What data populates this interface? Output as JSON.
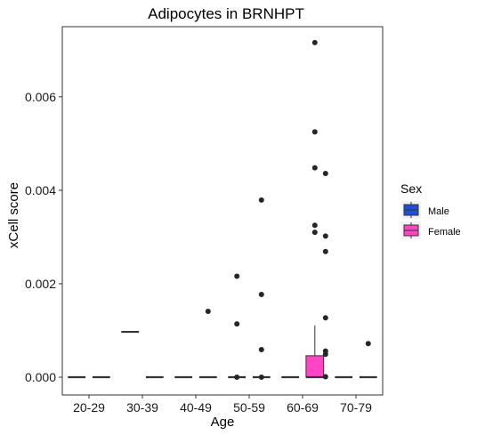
{
  "chart_data": {
    "type": "box",
    "title": "Adipocytes in BRNHPT",
    "xlabel": "Age",
    "ylabel": "xCell score",
    "categories": [
      "20-29",
      "30-39",
      "40-49",
      "50-59",
      "60-69",
      "70-79"
    ],
    "ylim": [
      -0.00038,
      0.0075
    ],
    "yticks": [
      0.0,
      0.002,
      0.004,
      0.006
    ],
    "ytick_labels": [
      "0.000",
      "0.002",
      "0.004",
      "0.006"
    ],
    "grid": false,
    "legend": {
      "title": "Sex",
      "position": "right",
      "entries": [
        {
          "label": "Male",
          "color": "#1f4fd6"
        },
        {
          "label": "Female",
          "color": "#ff44c4"
        }
      ]
    },
    "series": [
      {
        "name": "Male",
        "color": "#1f4fd6",
        "boxes": [
          {
            "category": "20-29",
            "q1": 0,
            "median": 0,
            "q3": 0,
            "whisker_low": 0,
            "whisker_high": 0,
            "outliers": []
          },
          {
            "category": "30-39",
            "q1": 0.00097,
            "median": 0.00097,
            "q3": 0.00097,
            "whisker_low": 0.00097,
            "whisker_high": 0.00097,
            "outliers": []
          },
          {
            "category": "40-49",
            "q1": 0,
            "median": 0,
            "q3": 0,
            "whisker_low": 0,
            "whisker_high": 0,
            "outliers": []
          },
          {
            "category": "50-59",
            "q1": 0,
            "median": 0,
            "q3": 0,
            "whisker_low": 0,
            "whisker_high": 0,
            "outliers": [
              0.00216,
              0.00114,
              0.0
            ]
          },
          {
            "category": "60-69",
            "q1": 0,
            "median": 0,
            "q3": 0,
            "whisker_low": 0,
            "whisker_high": 0,
            "outliers": []
          },
          {
            "category": "70-79",
            "q1": 0,
            "median": 0,
            "q3": 0,
            "whisker_low": 0,
            "whisker_high": 0,
            "outliers": []
          }
        ]
      },
      {
        "name": "Female",
        "color": "#ff44c4",
        "boxes": [
          {
            "category": "20-29",
            "q1": 0,
            "median": 0,
            "q3": 0,
            "whisker_low": 0,
            "whisker_high": 0,
            "outliers": []
          },
          {
            "category": "30-39",
            "q1": 0,
            "median": 0,
            "q3": 0,
            "whisker_low": 0,
            "whisker_high": 0,
            "outliers": []
          },
          {
            "category": "40-49",
            "q1": 0,
            "median": 0,
            "q3": 0,
            "whisker_low": 0,
            "whisker_high": 0,
            "outliers": [
              0.00141
            ]
          },
          {
            "category": "50-59",
            "q1": 0,
            "median": 0,
            "q3": 0,
            "whisker_low": 0,
            "whisker_high": 0,
            "outliers": [
              0.00379,
              0.00177,
              0.00059,
              0.0
            ]
          },
          {
            "category": "60-69",
            "q1": 0,
            "median": 0,
            "q3": 0.00046,
            "whisker_low": 0,
            "whisker_high": 0.00111,
            "outliers": [
              0.00716,
              0.00525,
              0.00448,
              0.00325,
              0.0031
            ]
          },
          {
            "category": "70-79",
            "q1": 0,
            "median": 0,
            "q3": 0,
            "whisker_low": 0,
            "whisker_high": 0,
            "outliers": [
              0.00072
            ]
          }
        ]
      },
      {
        "name": "",
        "color": "#ff44c4",
        "boxes": [
          {
            "category": "60-69",
            "q1": 0,
            "median": 0,
            "q3": 0,
            "whisker_low": 0,
            "whisker_high": 0,
            "outliers": [
              0.00436,
              0.00302,
              0.00269,
              0.00127,
              0.00056,
              0.00049,
              1e-05
            ]
          }
        ]
      }
    ]
  }
}
